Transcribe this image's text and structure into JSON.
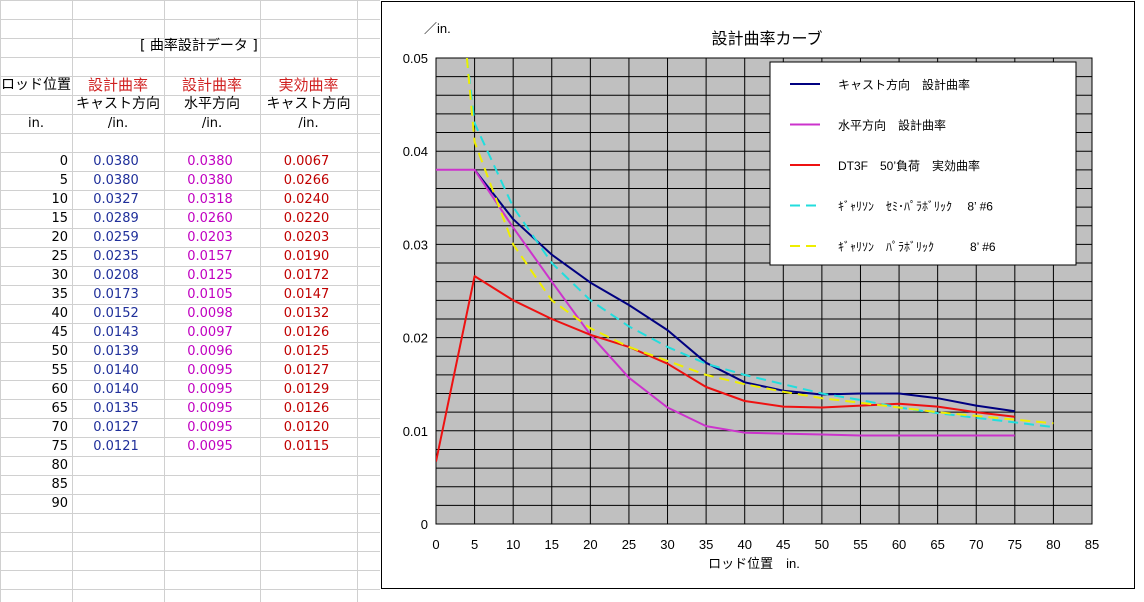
{
  "table": {
    "title": "[  曲率設計データ  ]",
    "col_headers": [
      {
        "line1": "ロッド位置",
        "line2": "",
        "unit": "in."
      },
      {
        "line1": "設計曲率",
        "line2": "キャスト方向",
        "unit": "/in."
      },
      {
        "line1": "設計曲率",
        "line2": "水平方向",
        "unit": "/in."
      },
      {
        "line1": "実効曲率",
        "line2": "キャスト方向",
        "unit": "/in."
      }
    ],
    "rows": [
      [
        "0",
        "0.0380",
        "0.0380",
        "0.0067"
      ],
      [
        "5",
        "0.0380",
        "0.0380",
        "0.0266"
      ],
      [
        "10",
        "0.0327",
        "0.0318",
        "0.0240"
      ],
      [
        "15",
        "0.0289",
        "0.0260",
        "0.0220"
      ],
      [
        "20",
        "0.0259",
        "0.0203",
        "0.0203"
      ],
      [
        "25",
        "0.0235",
        "0.0157",
        "0.0190"
      ],
      [
        "30",
        "0.0208",
        "0.0125",
        "0.0172"
      ],
      [
        "35",
        "0.0173",
        "0.0105",
        "0.0147"
      ],
      [
        "40",
        "0.0152",
        "0.0098",
        "0.0132"
      ],
      [
        "45",
        "0.0143",
        "0.0097",
        "0.0126"
      ],
      [
        "50",
        "0.0139",
        "0.0096",
        "0.0125"
      ],
      [
        "55",
        "0.0140",
        "0.0095",
        "0.0127"
      ],
      [
        "60",
        "0.0140",
        "0.0095",
        "0.0129"
      ],
      [
        "65",
        "0.0135",
        "0.0095",
        "0.0126"
      ],
      [
        "70",
        "0.0127",
        "0.0095",
        "0.0120"
      ],
      [
        "75",
        "0.0121",
        "0.0095",
        "0.0115"
      ],
      [
        "80",
        "",
        "",
        ""
      ],
      [
        "85",
        "",
        "",
        ""
      ],
      [
        "90",
        "",
        "",
        ""
      ]
    ]
  },
  "chart_data": {
    "type": "line",
    "title": "設計曲率カーブ",
    "ylabel": "／in.",
    "xlabel": "ロッド位置　in.",
    "xlim": [
      0,
      85
    ],
    "ylim": [
      0,
      0.05
    ],
    "x_ticks": [
      "0",
      "5",
      "10",
      "15",
      "20",
      "25",
      "30",
      "35",
      "40",
      "45",
      "50",
      "55",
      "60",
      "65",
      "70",
      "75",
      "80",
      "85"
    ],
    "y_ticks": [
      "0",
      "0.01",
      "0.02",
      "0.03",
      "0.04",
      "0.05"
    ],
    "grid": true,
    "plot_background": "#c0c0c0",
    "legend_position": "top-right",
    "series": [
      {
        "name": "キャスト方向　設計曲率",
        "color": "#000080",
        "dash": "solid",
        "x": [
          5,
          10,
          15,
          20,
          25,
          30,
          35,
          40,
          45,
          50,
          55,
          60,
          65,
          70,
          75
        ],
        "y": [
          0.038,
          0.0327,
          0.0289,
          0.0259,
          0.0235,
          0.0208,
          0.0173,
          0.0152,
          0.0143,
          0.0139,
          0.014,
          0.014,
          0.0135,
          0.0127,
          0.0121
        ]
      },
      {
        "name": "水平方向　設計曲率",
        "color": "#cc33cc",
        "dash": "solid",
        "x": [
          0,
          5,
          10,
          15,
          20,
          25,
          30,
          35,
          40,
          45,
          50,
          55,
          60,
          65,
          70,
          75
        ],
        "y": [
          0.038,
          0.038,
          0.0318,
          0.026,
          0.0203,
          0.0157,
          0.0125,
          0.0105,
          0.0098,
          0.0097,
          0.0096,
          0.0095,
          0.0095,
          0.0095,
          0.0095,
          0.0095
        ]
      },
      {
        "name": "DT3F　50’負荷　実効曲率",
        "color": "#ee1111",
        "dash": "solid",
        "x": [
          0,
          5,
          10,
          15,
          20,
          25,
          30,
          35,
          40,
          45,
          50,
          55,
          60,
          65,
          70,
          75
        ],
        "y": [
          0.0067,
          0.0266,
          0.024,
          0.022,
          0.0203,
          0.019,
          0.0172,
          0.0147,
          0.0132,
          0.0126,
          0.0125,
          0.0127,
          0.0129,
          0.0126,
          0.012,
          0.0115
        ]
      },
      {
        "name": "ｷﾞｬﾘｿﾝ　ｾﾐ･ﾊﾟﾗﾎﾞﾘｯｸ　 8’ #6",
        "color": "#22dddd",
        "dash": "dashed",
        "x": [
          4,
          5,
          10,
          15,
          20,
          25,
          30,
          35,
          40,
          45,
          50,
          55,
          60,
          65,
          70,
          75,
          80
        ],
        "y": [
          0.05,
          0.043,
          0.034,
          0.028,
          0.024,
          0.0212,
          0.019,
          0.0172,
          0.016,
          0.015,
          0.014,
          0.0133,
          0.0125,
          0.0119,
          0.0114,
          0.0109,
          0.0104
        ]
      },
      {
        "name": "ｷﾞｬﾘｿﾝ　ﾊﾟﾗﾎﾞﾘｯｸ　　　8’ #6",
        "color": "#eeee00",
        "dash": "dashed",
        "x": [
          4,
          5,
          10,
          15,
          20,
          25,
          30,
          35,
          40,
          45,
          50,
          55,
          60,
          65,
          70,
          75,
          80
        ],
        "y": [
          0.05,
          0.041,
          0.03,
          0.024,
          0.021,
          0.019,
          0.0175,
          0.016,
          0.015,
          0.0142,
          0.0135,
          0.013,
          0.0125,
          0.012,
          0.0116,
          0.0112,
          0.0108
        ]
      }
    ]
  }
}
